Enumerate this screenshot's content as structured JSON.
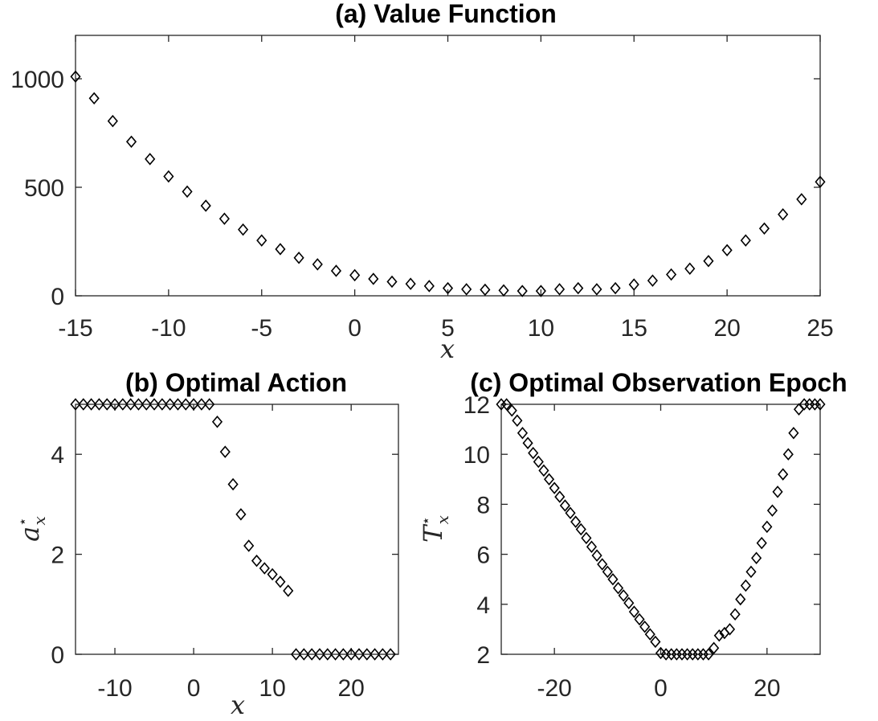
{
  "chart_data": [
    {
      "id": "a",
      "type": "scatter",
      "title": "(a) Value Function",
      "xlabel": "x",
      "ylabel": "",
      "xlim": [
        -15,
        25
      ],
      "ylim": [
        0,
        1200
      ],
      "xticks": [
        -15,
        -10,
        -5,
        0,
        5,
        10,
        15,
        20,
        25
      ],
      "yticks": [
        0,
        500,
        1000
      ],
      "grid": false,
      "marker": "diamond",
      "series": [
        {
          "x": [
            -15,
            -14,
            -13,
            -12,
            -11,
            -10,
            -9,
            -8,
            -7,
            -6,
            -5,
            -4,
            -3,
            -2,
            -1,
            0,
            1,
            2,
            3,
            4,
            5,
            6,
            7,
            8,
            9,
            10,
            11,
            12,
            13,
            14,
            15,
            16,
            17,
            18,
            19,
            20,
            21,
            22,
            23,
            24,
            25
          ],
          "y": [
            1010,
            910,
            805,
            710,
            630,
            550,
            480,
            415,
            355,
            305,
            255,
            215,
            175,
            145,
            115,
            95,
            78,
            65,
            55,
            45,
            35,
            30,
            28,
            25,
            22,
            22,
            30,
            35,
            30,
            35,
            52,
            70,
            98,
            125,
            160,
            210,
            255,
            310,
            375,
            445,
            525
          ]
        }
      ]
    },
    {
      "id": "b",
      "type": "scatter",
      "title": "(b) Optimal Action",
      "xlabel": "x",
      "ylabel": "a",
      "ylabel_sub": "x",
      "ylabel_sup": "⋆",
      "xlim": [
        -15,
        26
      ],
      "ylim": [
        0,
        5
      ],
      "xticks": [
        -10,
        0,
        10,
        20
      ],
      "yticks": [
        0,
        2,
        4
      ],
      "grid": false,
      "marker": "diamond",
      "series": [
        {
          "x": [
            -15,
            -14,
            -13,
            -12,
            -11,
            -10,
            -9,
            -8,
            -7,
            -6,
            -5,
            -4,
            -3,
            -2,
            -1,
            0,
            1,
            2,
            3,
            4,
            5,
            6,
            7,
            8,
            9,
            10,
            11,
            12,
            13,
            14,
            15,
            16,
            17,
            18,
            19,
            20,
            21,
            22,
            23,
            24,
            25
          ],
          "y": [
            5,
            5,
            5,
            5,
            5,
            5,
            5,
            5,
            5,
            5,
            5,
            5,
            5,
            5,
            5,
            5,
            5,
            5,
            4.65,
            4.05,
            3.4,
            2.8,
            2.17,
            1.87,
            1.72,
            1.6,
            1.45,
            1.27,
            0,
            0,
            0,
            0,
            0,
            0,
            0,
            0,
            0,
            0,
            0,
            0,
            0
          ]
        }
      ]
    },
    {
      "id": "c",
      "type": "scatter",
      "title": "(c) Optimal Observation Epoch",
      "xlabel": "",
      "ylabel": "T",
      "ylabel_sub": "x",
      "ylabel_sup": "⋆",
      "xlim": [
        -30,
        30
      ],
      "ylim": [
        2,
        12
      ],
      "xticks": [
        -20,
        0,
        20
      ],
      "yticks": [
        2,
        4,
        6,
        8,
        10,
        12
      ],
      "grid": false,
      "marker": "diamond",
      "series": [
        {
          "x": [
            -30,
            -29,
            -28,
            -27,
            -26,
            -25,
            -24,
            -23,
            -22,
            -21,
            -20,
            -19,
            -18,
            -17,
            -16,
            -15,
            -14,
            -13,
            -12,
            -11,
            -10,
            -9,
            -8,
            -7,
            -6,
            -5,
            -4,
            -3,
            -2,
            -1,
            0,
            1,
            2,
            3,
            4,
            5,
            6,
            7,
            8,
            9,
            10,
            11,
            12,
            13,
            14,
            15,
            16,
            17,
            18,
            19,
            20,
            21,
            22,
            23,
            24,
            25,
            26,
            27,
            28,
            29,
            30
          ],
          "y": [
            12,
            12,
            11.75,
            11.35,
            10.85,
            10.45,
            10.05,
            9.7,
            9.35,
            9.0,
            8.65,
            8.3,
            7.95,
            7.65,
            7.3,
            7.0,
            6.65,
            6.3,
            5.95,
            5.6,
            5.3,
            5.0,
            4.65,
            4.35,
            4.05,
            3.7,
            3.4,
            3.1,
            2.8,
            2.5,
            2.05,
            2.0,
            2.0,
            2.0,
            2.0,
            2.0,
            2.0,
            2.0,
            2.0,
            2.0,
            2.25,
            2.75,
            2.85,
            3.0,
            3.6,
            4.2,
            4.75,
            5.3,
            5.85,
            6.45,
            7.1,
            7.75,
            8.5,
            9.2,
            10.0,
            10.85,
            11.8,
            12,
            12,
            12,
            12
          ]
        }
      ]
    }
  ]
}
